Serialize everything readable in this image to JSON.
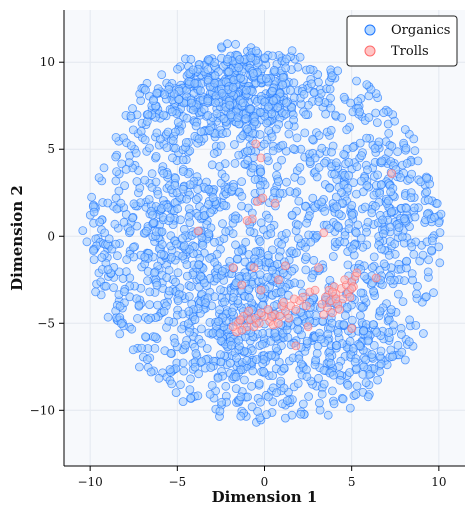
{
  "chart_data": {
    "type": "scatter",
    "title": "",
    "xlabel": "Dimension 1",
    "ylabel": "Dimension 2",
    "xlim": [
      -11.5,
      11.5
    ],
    "ylim": [
      -13.2,
      13.0
    ],
    "xticks": [
      -10,
      -5,
      0,
      5,
      10
    ],
    "yticks": [
      -10,
      -5,
      0,
      5,
      10
    ],
    "grid": true,
    "legend_position": "top-right",
    "series": [
      {
        "name": "Organics",
        "color": "#1f77ff",
        "fill": "#9ecbff",
        "point_count": 2400,
        "clusters": [
          {
            "center": [
              0.0,
              0.0
            ],
            "spread": [
              5.2,
              5.2
            ],
            "weight": 0.5
          },
          {
            "center": [
              -4.5,
              8.5
            ],
            "spread": [
              1.7,
              1.6
            ],
            "weight": 0.08
          },
          {
            "center": [
              -1.0,
              8.8
            ],
            "spread": [
              1.6,
              1.4
            ],
            "weight": 0.07
          },
          {
            "center": [
              -0.5,
              7.0
            ],
            "spread": [
              1.6,
              1.0
            ],
            "weight": 0.05
          },
          {
            "center": [
              -2.0,
              -4.5
            ],
            "spread": [
              2.4,
              2.6
            ],
            "weight": 0.1
          },
          {
            "center": [
              4.5,
              -6.5
            ],
            "spread": [
              2.0,
              1.8
            ],
            "weight": 0.06
          },
          {
            "center": [
              6.5,
              2.0
            ],
            "spread": [
              2.0,
              2.0
            ],
            "weight": 0.07
          },
          {
            "center": [
              -5.5,
              1.0
            ],
            "spread": [
              2.0,
              2.0
            ],
            "weight": 0.07
          }
        ]
      },
      {
        "name": "Trolls",
        "color": "#ff6b6b",
        "fill": "#ffb3b3",
        "points_main": [
          [
            -1.5,
            -5.0
          ],
          [
            -1.2,
            -4.6
          ],
          [
            -1.0,
            -5.2
          ],
          [
            -0.8,
            -4.8
          ],
          [
            -0.5,
            -4.7
          ],
          [
            -0.3,
            -5.0
          ],
          [
            0.0,
            -4.6
          ],
          [
            0.3,
            -4.9
          ],
          [
            0.6,
            -4.5
          ],
          [
            0.9,
            -4.6
          ],
          [
            1.2,
            -4.3
          ],
          [
            1.5,
            -4.0
          ],
          [
            1.8,
            -4.2
          ],
          [
            2.0,
            -3.7
          ],
          [
            2.2,
            -3.5
          ],
          [
            -1.6,
            -5.5
          ],
          [
            -1.3,
            -5.4
          ],
          [
            -0.6,
            -5.2
          ],
          [
            0.2,
            -4.2
          ],
          [
            0.5,
            -5.1
          ],
          [
            1.0,
            -4.0
          ],
          [
            1.7,
            -3.6
          ],
          [
            2.4,
            -4.0
          ],
          [
            -1.8,
            -5.2
          ],
          [
            -0.2,
            -4.4
          ],
          [
            0.8,
            -5.0
          ],
          [
            1.4,
            -4.7
          ],
          [
            2.6,
            -3.2
          ],
          [
            -1.4,
            -4.8
          ],
          [
            -0.9,
            -4.3
          ],
          [
            0.4,
            -4.6
          ],
          [
            1.1,
            -3.8
          ],
          [
            3.5,
            -3.5
          ],
          [
            3.8,
            -3.7
          ],
          [
            4.1,
            -3.3
          ],
          [
            4.4,
            -3.0
          ],
          [
            4.7,
            -2.8
          ],
          [
            5.0,
            -2.6
          ],
          [
            5.2,
            -2.3
          ],
          [
            3.6,
            -4.1
          ],
          [
            3.9,
            -4.4
          ],
          [
            4.2,
            -3.9
          ],
          [
            4.5,
            -3.6
          ],
          [
            4.8,
            -3.2
          ],
          [
            5.1,
            -2.9
          ],
          [
            3.3,
            -3.9
          ],
          [
            4.0,
            -2.9
          ],
          [
            4.6,
            -2.5
          ],
          [
            5.3,
            -2.1
          ],
          [
            3.7,
            -3.1
          ],
          [
            4.3,
            -4.2
          ],
          [
            4.9,
            -3.5
          ],
          [
            3.4,
            -4.5
          ],
          [
            5.0,
            -3.0
          ],
          [
            4.1,
            -3.6
          ],
          [
            3.9,
            -3.2
          ]
        ],
        "points_scattered": [
          [
            -0.4,
            2.0
          ],
          [
            -0.1,
            2.2
          ],
          [
            -0.7,
            1.0
          ],
          [
            -1.0,
            0.9
          ],
          [
            -3.8,
            0.3
          ],
          [
            3.4,
            0.2
          ],
          [
            -0.2,
            4.5
          ],
          [
            -0.5,
            5.3
          ],
          [
            7.3,
            3.6
          ],
          [
            1.2,
            -1.7
          ],
          [
            -1.8,
            -1.8
          ],
          [
            3.1,
            -1.8
          ],
          [
            1.8,
            -6.3
          ],
          [
            -0.2,
            -3.1
          ],
          [
            2.9,
            -3.1
          ],
          [
            5.0,
            -5.3
          ],
          [
            2.5,
            -5.2
          ],
          [
            -0.6,
            -1.8
          ],
          [
            0.8,
            -2.5
          ],
          [
            -1.3,
            -2.8
          ],
          [
            6.4,
            -2.4
          ],
          [
            0.6,
            1.9
          ]
        ]
      }
    ]
  }
}
